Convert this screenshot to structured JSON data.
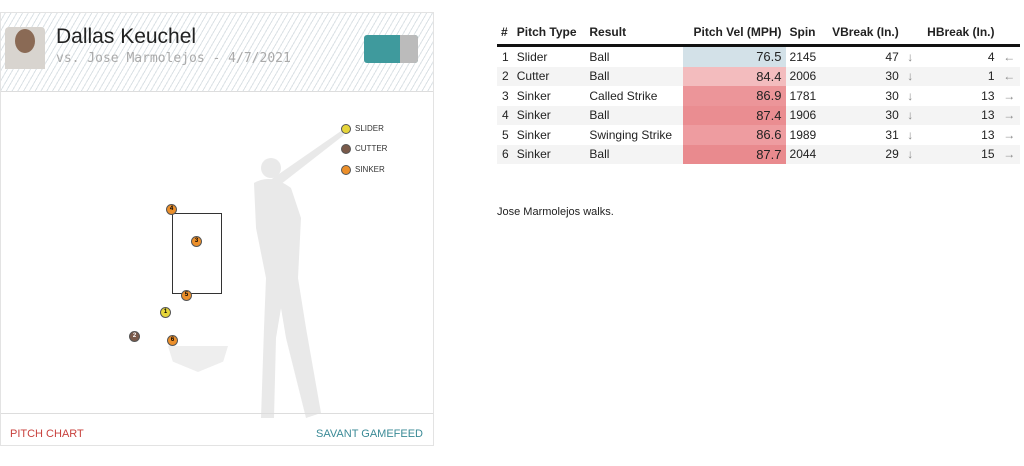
{
  "header": {
    "pitcher": "Dallas Keuchel",
    "subtitle": "vs. Jose Marmolejos - 4/7/2021"
  },
  "legend": [
    {
      "label": "SLIDER",
      "color": "#e6d53a"
    },
    {
      "label": "CUTTER",
      "color": "#7a5a4a"
    },
    {
      "label": "SINKER",
      "color": "#ec8f2a"
    }
  ],
  "pitches": [
    {
      "n": "1",
      "type": "slider"
    },
    {
      "n": "2",
      "type": "cutter"
    },
    {
      "n": "3",
      "type": "sinker"
    },
    {
      "n": "4",
      "type": "sinker"
    },
    {
      "n": "5",
      "type": "sinker"
    },
    {
      "n": "6",
      "type": "sinker"
    }
  ],
  "footer": {
    "left": "PITCH CHART",
    "right": "SAVANT GAMEFEED"
  },
  "table": {
    "headers": [
      "#",
      "Pitch Type",
      "Result",
      "Pitch Vel (MPH)",
      "Spin",
      "VBreak (In.)",
      "",
      "HBreak (In.)",
      ""
    ],
    "rows": [
      [
        "1",
        "Slider",
        "Ball",
        "76.5",
        "2145",
        "47",
        "↓",
        "4",
        "←"
      ],
      [
        "2",
        "Cutter",
        "Ball",
        "84.4",
        "2006",
        "30",
        "↓",
        "1",
        "←"
      ],
      [
        "3",
        "Sinker",
        "Called Strike",
        "86.9",
        "1781",
        "30",
        "↓",
        "13",
        "→"
      ],
      [
        "4",
        "Sinker",
        "Ball",
        "87.4",
        "1906",
        "30",
        "↓",
        "13",
        "→"
      ],
      [
        "5",
        "Sinker",
        "Swinging Strike",
        "86.6",
        "1989",
        "31",
        "↓",
        "13",
        "→"
      ],
      [
        "6",
        "Sinker",
        "Ball",
        "87.7",
        "2044",
        "29",
        "↓",
        "15",
        "→"
      ]
    ],
    "vel_colors": [
      "#d3e1e8",
      "#f3bcbe",
      "#ec9599",
      "#ea8d91",
      "#ee9ca0",
      "#e98a8e"
    ]
  },
  "summary": "Jose Marmolejos walks."
}
